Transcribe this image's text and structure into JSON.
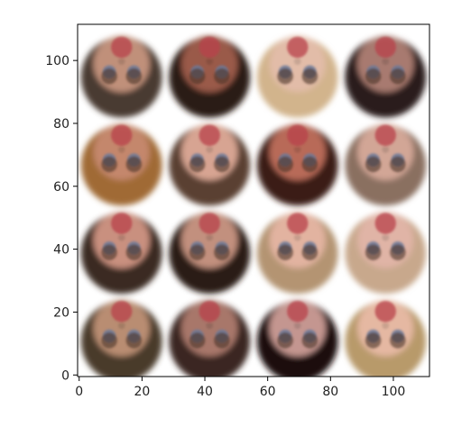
{
  "chart_data": {
    "type": "image_grid",
    "title": "",
    "xlabel": "",
    "ylabel": "",
    "xlim": [
      -0.5,
      111.5
    ],
    "ylim": [
      111.5,
      -0.5
    ],
    "x_ticks": [
      0,
      20,
      40,
      60,
      80,
      100
    ],
    "y_ticks": [
      0,
      20,
      40,
      60,
      80,
      100
    ],
    "grid": false,
    "cell_size": 28,
    "rows": 4,
    "cols": 4,
    "cells": [
      {
        "row": 0,
        "col": 0,
        "skin": "#b98d72",
        "hair": "#4a3a2c",
        "bg": "#3d4a3c"
      },
      {
        "row": 0,
        "col": 1,
        "skin": "#a8776a",
        "hair": "#3a2820",
        "bg": "#2f3a33"
      },
      {
        "row": 0,
        "col": 2,
        "skin": "#c49690",
        "hair": "#1a0e0a",
        "bg": "#6a2a12"
      },
      {
        "row": 0,
        "col": 3,
        "skin": "#e5b8a2",
        "hair": "#b89a6a",
        "bg": "#e9e2d2"
      },
      {
        "row": 1,
        "col": 0,
        "skin": "#c9907f",
        "hair": "#3a2a20",
        "bg": "#3c4636"
      },
      {
        "row": 1,
        "col": 1,
        "skin": "#c2907e",
        "hair": "#2b1f18",
        "bg": "#2a2e2a"
      },
      {
        "row": 1,
        "col": 2,
        "skin": "#e2b3a0",
        "hair": "#b49472",
        "bg": "#9a8a70"
      },
      {
        "row": 1,
        "col": 3,
        "skin": "#e0b4a6",
        "hair": "#c8a88c",
        "bg": "#d8c8b8"
      },
      {
        "row": 2,
        "col": 0,
        "skin": "#c4876c",
        "hair": "#a06b34",
        "bg": "#f2ecdc"
      },
      {
        "row": 2,
        "col": 1,
        "skin": "#d7a492",
        "hair": "#5a4030",
        "bg": "#6e7a70"
      },
      {
        "row": 2,
        "col": 2,
        "skin": "#b86a58",
        "hair": "#3a1c12",
        "bg": "#4a3428"
      },
      {
        "row": 2,
        "col": 3,
        "skin": "#d2a696",
        "hair": "#8a7060",
        "bg": "#e2d8cc"
      },
      {
        "row": 3,
        "col": 0,
        "skin": "#c0907a",
        "hair": "#4a3a30",
        "bg": "#2c3530"
      },
      {
        "row": 3,
        "col": 1,
        "skin": "#9a5a48",
        "hair": "#2a1a12",
        "bg": "#1e1a16"
      },
      {
        "row": 3,
        "col": 2,
        "skin": "#e2bca8",
        "hair": "#d2b48c",
        "bg": "#b8a888"
      },
      {
        "row": 3,
        "col": 3,
        "skin": "#a87a70",
        "hair": "#2a1e1a",
        "bg": "#3a3a3c"
      }
    ]
  }
}
